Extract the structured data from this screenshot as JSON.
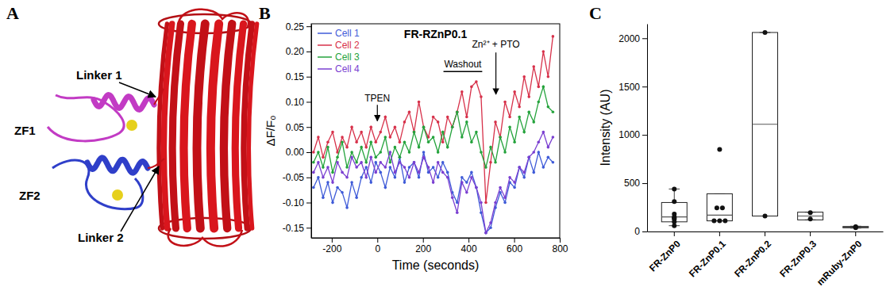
{
  "panel_labels": [
    "A",
    "B",
    "C"
  ],
  "diagram": {
    "zf1_label": "ZF1",
    "zf2_label": "ZF2",
    "linker1_label": "Linker 1",
    "linker2_label": "Linker 2"
  },
  "chart_data": [
    {
      "type": "line",
      "title": "FR-RZnP0.1",
      "x_label": "Time (seconds)",
      "y_label": "ΔF/F₀",
      "legend": "upper left",
      "marker": "circle",
      "xlim": [
        -290,
        800
      ],
      "xticks": [
        -200,
        0,
        200,
        400,
        600,
        800
      ],
      "ylim": [
        -0.17,
        0.255
      ],
      "yticks": [
        -0.15,
        {
          "value": -0.1,
          "label": "-0.10"
        },
        -0.05,
        {
          "value": 0,
          "label": "0.00"
        },
        0.05,
        {
          "value": 0.1,
          "label": "0.10"
        },
        0.15,
        {
          "value": 0.2,
          "label": "0.20"
        },
        0.25
      ],
      "annotations": [
        {
          "text": "TPEN",
          "x": 0
        },
        {
          "text": "Washout",
          "x_start": 290,
          "x_end": 460
        },
        {
          "text": "Zn²⁺ + PTO",
          "x": 520
        }
      ],
      "x": [
        -280,
        -259,
        -238,
        -217,
        -196,
        -175,
        -154,
        -133,
        -112,
        -91,
        -70,
        -49,
        -28,
        -7,
        14,
        35,
        56,
        77,
        98,
        119,
        140,
        161,
        182,
        203,
        224,
        245,
        266,
        287,
        308,
        329,
        350,
        371,
        392,
        413,
        434,
        455,
        476,
        497,
        518,
        539,
        560,
        581,
        602,
        623,
        644,
        665,
        686,
        707,
        728,
        749,
        770
      ],
      "series": [
        {
          "name": "Cell 1",
          "color": "#3f5bd8",
          "values": [
            -0.07,
            -0.05,
            -0.09,
            -0.06,
            -0.1,
            -0.07,
            -0.08,
            -0.11,
            -0.06,
            -0.09,
            -0.05,
            -0.03,
            -0.06,
            -0.02,
            -0.04,
            -0.07,
            -0.03,
            -0.05,
            -0.01,
            -0.06,
            -0.03,
            -0.02,
            -0.05,
            0.0,
            -0.04,
            -0.03,
            -0.05,
            -0.02,
            -0.04,
            -0.08,
            -0.1,
            -0.05,
            -0.06,
            -0.04,
            -0.07,
            -0.12,
            -0.16,
            -0.15,
            -0.11,
            -0.08,
            -0.1,
            -0.06,
            -0.07,
            -0.03,
            -0.05,
            -0.01,
            -0.04,
            0.0,
            -0.03,
            -0.01,
            -0.02
          ]
        },
        {
          "name": "Cell 2",
          "color": "#d7314a",
          "values": [
            0.0,
            0.03,
            -0.01,
            0.02,
            0.04,
            0.0,
            0.03,
            0.01,
            0.05,
            0.02,
            0.04,
            0.01,
            0.05,
            0.02,
            0.04,
            0.07,
            0.03,
            0.05,
            0.02,
            0.06,
            0.08,
            0.04,
            0.1,
            0.05,
            0.03,
            0.07,
            0.06,
            0.02,
            0.07,
            0.05,
            0.08,
            0.12,
            0.07,
            0.13,
            0.14,
            0.11,
            -0.1,
            -0.02,
            0.06,
            0.03,
            0.1,
            0.07,
            0.12,
            0.09,
            0.15,
            0.11,
            0.17,
            0.13,
            0.2,
            0.15,
            0.23
          ]
        },
        {
          "name": "Cell 3",
          "color": "#24a33c",
          "values": [
            -0.02,
            0.0,
            -0.03,
            0.01,
            -0.04,
            -0.01,
            0.02,
            -0.03,
            0.0,
            -0.02,
            0.01,
            -0.02,
            0.02,
            -0.01,
            0.0,
            0.03,
            -0.02,
            0.01,
            -0.01,
            0.02,
            0.0,
            0.04,
            0.01,
            0.05,
            0.02,
            0.03,
            0.0,
            0.04,
            0.01,
            0.05,
            0.08,
            0.03,
            0.06,
            0.02,
            0.04,
            0.0,
            -0.03,
            0.01,
            -0.02,
            0.03,
            0.0,
            0.05,
            0.02,
            0.07,
            0.04,
            0.08,
            0.06,
            0.1,
            0.13,
            0.09,
            0.08
          ]
        },
        {
          "name": "Cell 4",
          "color": "#7a3fd1",
          "values": [
            -0.04,
            -0.02,
            -0.05,
            -0.03,
            -0.06,
            -0.02,
            -0.04,
            -0.05,
            -0.01,
            -0.03,
            -0.02,
            -0.05,
            -0.01,
            -0.04,
            -0.02,
            -0.03,
            0.0,
            -0.04,
            -0.02,
            -0.03,
            -0.05,
            -0.02,
            -0.04,
            -0.01,
            -0.03,
            -0.06,
            -0.02,
            -0.04,
            -0.05,
            -0.09,
            -0.12,
            -0.06,
            -0.08,
            -0.05,
            -0.07,
            -0.1,
            -0.16,
            -0.14,
            -0.1,
            -0.07,
            -0.09,
            -0.05,
            -0.06,
            -0.03,
            -0.04,
            -0.01,
            0.0,
            0.02,
            0.04,
            0.01,
            0.03
          ]
        }
      ]
    },
    {
      "type": "box",
      "y_label": "Intensity (AU)",
      "categories": [
        "FR-ZnP0",
        "FR-ZnP0.1",
        "FR-ZnP0.2",
        "FR-ZnP0.3",
        "mRuby-ZnP0"
      ],
      "ylim": [
        0,
        2150
      ],
      "yticks": [
        0,
        500,
        1000,
        1500,
        2000
      ],
      "q1": [
        100,
        110,
        160,
        120,
        38
      ],
      "median": [
        150,
        170,
        1110,
        160,
        45
      ],
      "q3": [
        300,
        390,
        2060,
        200,
        52
      ],
      "whisker_low": [
        60,
        110,
        160,
        120,
        35
      ],
      "whisker_high": [
        440,
        390,
        2060,
        200,
        55
      ],
      "points": [
        [
          440,
          310,
          180,
          150,
          140,
          130,
          100,
          60
        ],
        [
          850,
          245,
          245,
          110,
          110,
          110
        ],
        [
          2060,
          160
        ],
        [
          195,
          130
        ],
        [
          50,
          45,
          40
        ]
      ]
    }
  ]
}
